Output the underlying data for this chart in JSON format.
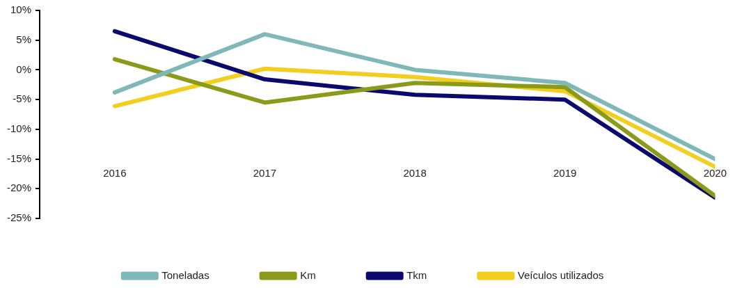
{
  "chart_data": {
    "type": "line",
    "categories": [
      "2016",
      "2017",
      "2018",
      "2019",
      "2020"
    ],
    "series": [
      {
        "name": "Toneladas",
        "color": "#7fb8b8",
        "values": [
          -3.8,
          6.0,
          0.0,
          -2.2,
          -15.0
        ]
      },
      {
        "name": "Km",
        "color": "#8c9a1a",
        "values": [
          1.8,
          -5.5,
          -2.2,
          -2.9,
          -21.2
        ]
      },
      {
        "name": "Tkm",
        "color": "#0a0a6e",
        "values": [
          6.5,
          -1.6,
          -4.2,
          -5.0,
          -21.5
        ]
      },
      {
        "name": "Veículos utilizados",
        "color": "#f2cf1f",
        "values": [
          -6.1,
          0.2,
          -1.2,
          -3.6,
          -16.3
        ]
      }
    ],
    "ylim": [
      -25,
      10
    ],
    "yticks": [
      {
        "value": -25,
        "label": "-25%"
      },
      {
        "value": -20,
        "label": "-20%"
      },
      {
        "value": -15,
        "label": "-15%"
      },
      {
        "value": -10,
        "label": "-10%"
      },
      {
        "value": -5,
        "label": "-5%"
      },
      {
        "value": 0,
        "label": "0%"
      },
      {
        "value": 5,
        "label": "5%"
      },
      {
        "value": 10,
        "label": "10%"
      }
    ],
    "grid": false,
    "legend": "bottom",
    "marker": "none",
    "line_style": "solid"
  }
}
